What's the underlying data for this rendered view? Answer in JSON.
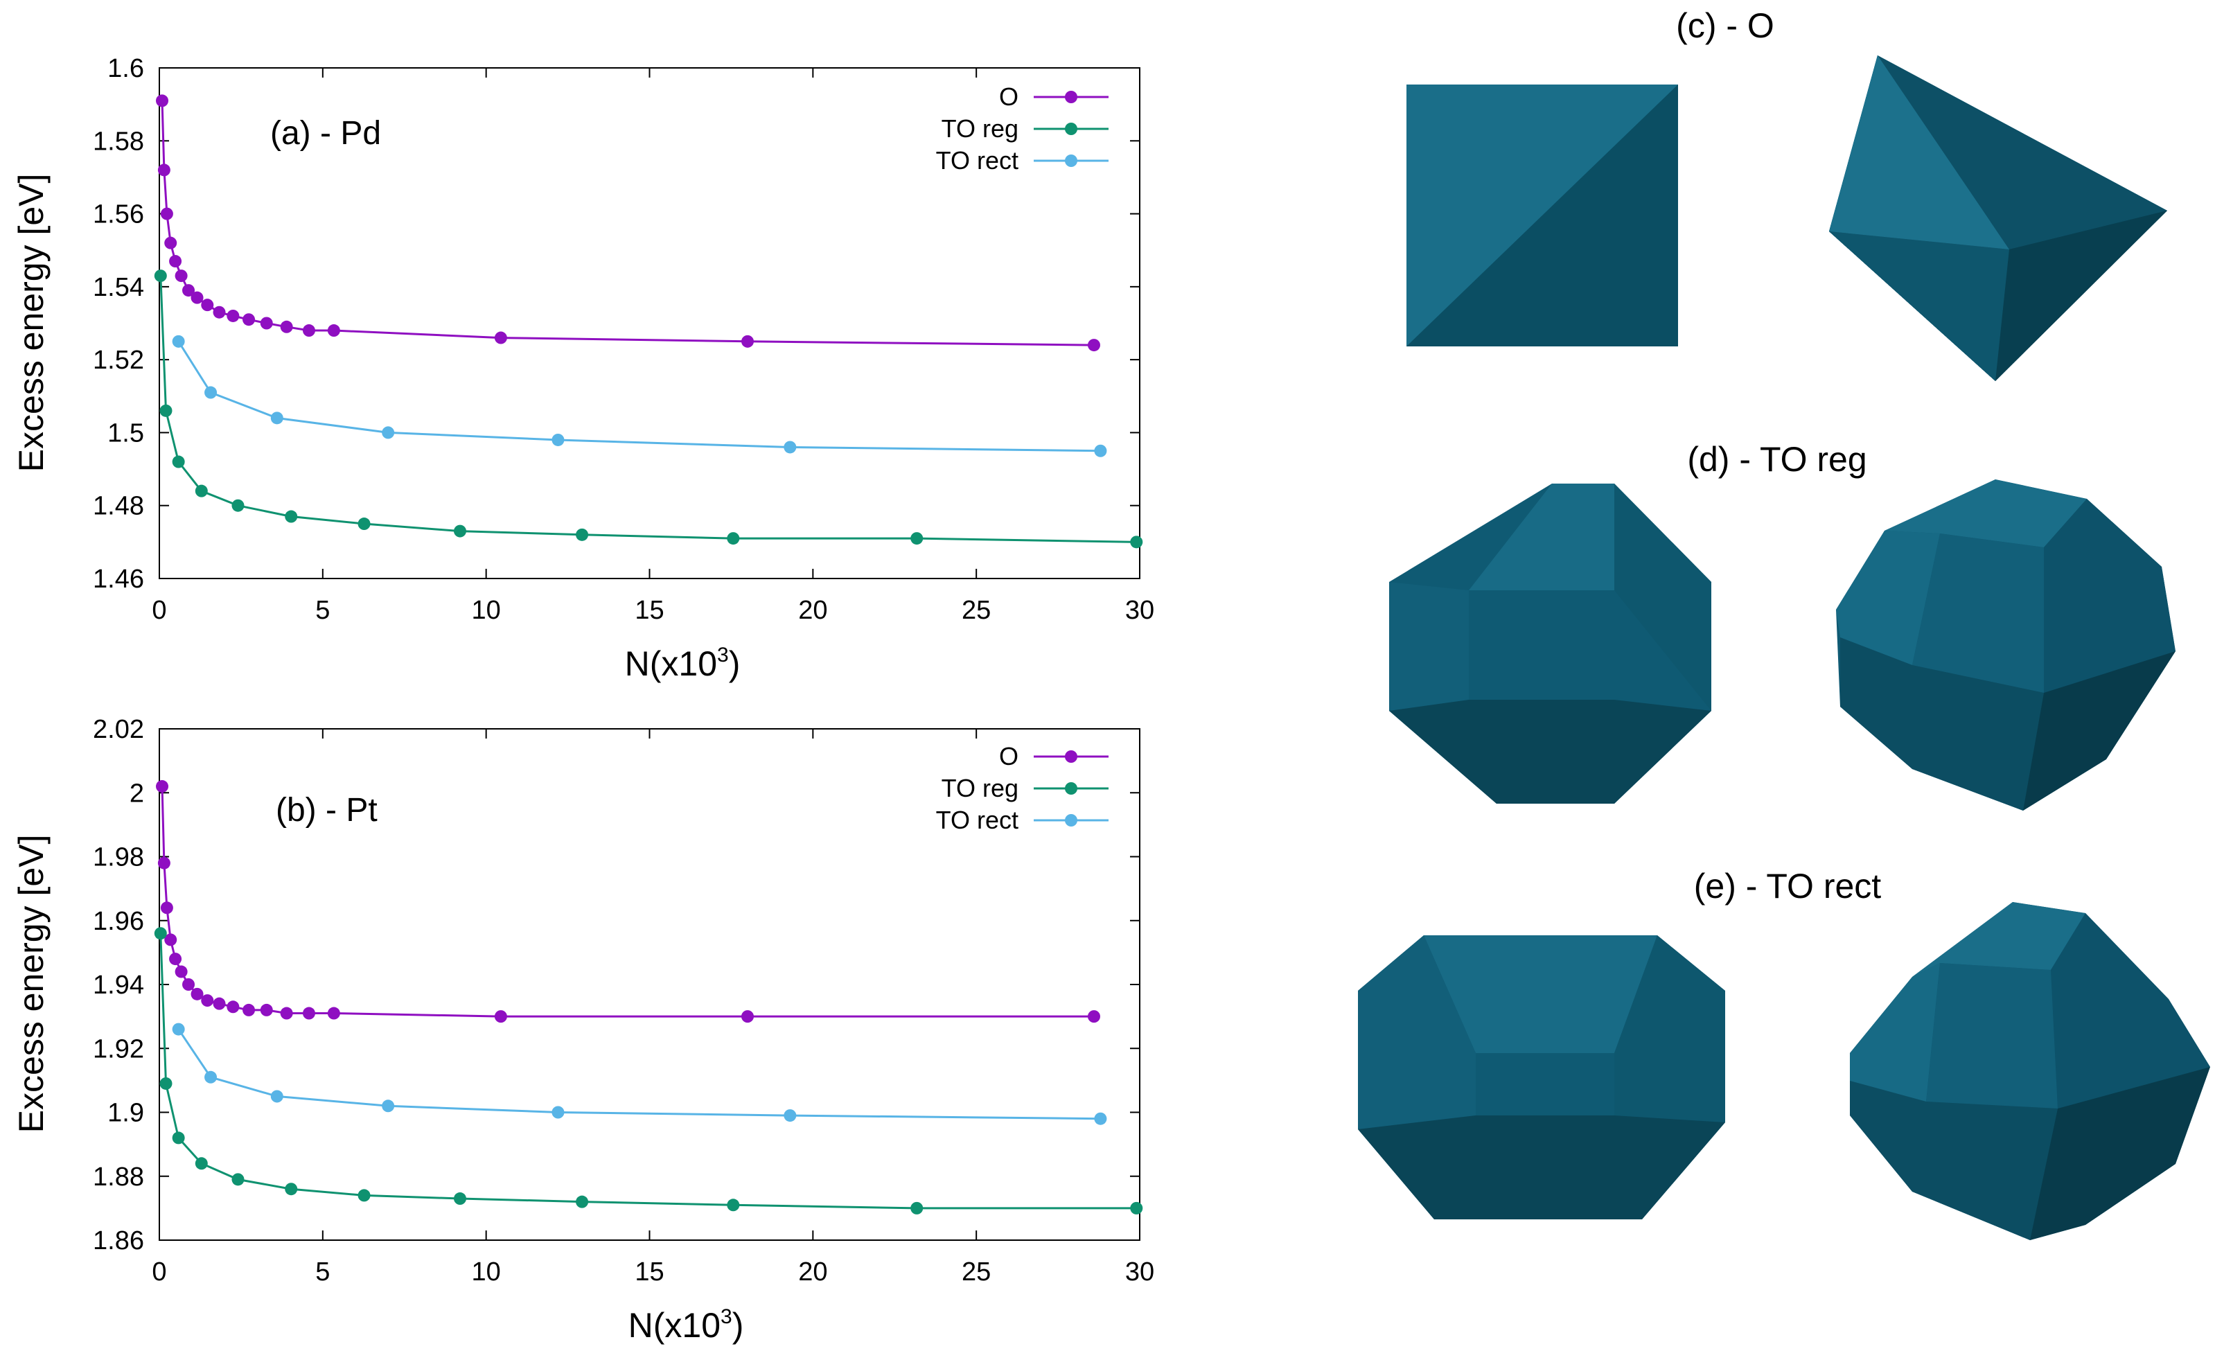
{
  "colors": {
    "O": "#8f0fc1",
    "TO reg": "#0f9270",
    "TO rect": "#58b4e6",
    "particle": "#0f5a73",
    "particle_dark": "#0b4558",
    "particle_light": "#1a6e89"
  },
  "chart_data": [
    {
      "type": "line",
      "title": "(a) - Pd",
      "xlabel": "N(x10",
      "xlabel_sup": "3",
      "xlabel_close": ")",
      "ylabel": "Excess energy [eV]",
      "xlim": [
        0,
        30
      ],
      "ylim": [
        1.46,
        1.6
      ],
      "xticks": [
        0,
        5,
        10,
        15,
        20,
        25,
        30
      ],
      "yticks": [
        1.46,
        1.48,
        1.5,
        1.52,
        1.54,
        1.56,
        1.58,
        1.6
      ],
      "xtick_labels": [
        "0",
        "5",
        "10",
        "15",
        "20",
        "25",
        "30"
      ],
      "ytick_labels": [
        "1.46",
        "1.48",
        "1.5",
        "1.52",
        "1.54",
        "1.56",
        "1.58",
        "1.6"
      ],
      "legend": [
        "O",
        "TO reg",
        "TO rect"
      ],
      "legend_position": "top-right",
      "series": [
        {
          "name": "O",
          "x": [
            0.085,
            0.146,
            0.231,
            0.344,
            0.489,
            0.67,
            0.891,
            1.156,
            1.469,
            1.834,
            2.255,
            2.736,
            3.281,
            3.894,
            4.579,
            5.34,
            10.45,
            18.0,
            28.6
          ],
          "y": [
            1.591,
            1.572,
            1.56,
            1.552,
            1.547,
            1.543,
            1.539,
            1.537,
            1.535,
            1.533,
            1.532,
            1.531,
            1.53,
            1.529,
            1.528,
            1.528,
            1.526,
            1.525,
            1.524
          ]
        },
        {
          "name": "TO reg",
          "x": [
            0.038,
            0.201,
            0.586,
            1.289,
            2.406,
            4.033,
            6.266,
            9.201,
            12.934,
            17.561,
            23.178,
            29.9
          ],
          "y": [
            1.543,
            1.506,
            1.492,
            1.484,
            1.48,
            1.477,
            1.475,
            1.473,
            1.472,
            1.471,
            1.471,
            1.47
          ]
        },
        {
          "name": "TO rect",
          "x": [
            0.586,
            1.57,
            3.6,
            7.0,
            12.2,
            19.3,
            28.8
          ],
          "y": [
            1.525,
            1.511,
            1.504,
            1.5,
            1.498,
            1.496,
            1.495
          ]
        }
      ]
    },
    {
      "type": "line",
      "title": "(b) - Pt",
      "xlabel": "N(x10",
      "xlabel_sup": "3",
      "xlabel_close": ")",
      "ylabel": "Excess energy [eV]",
      "xlim": [
        0,
        30
      ],
      "ylim": [
        1.86,
        2.02
      ],
      "xticks": [
        0,
        5,
        10,
        15,
        20,
        25,
        30
      ],
      "yticks": [
        1.86,
        1.88,
        1.9,
        1.92,
        1.94,
        1.96,
        1.98,
        2.0,
        2.02
      ],
      "xtick_labels": [
        "0",
        "5",
        "10",
        "15",
        "20",
        "25",
        "30"
      ],
      "ytick_labels": [
        "1.86",
        "1.88",
        "1.9",
        "1.92",
        "1.94",
        "1.96",
        "1.98",
        "2",
        "2.02"
      ],
      "legend": [
        "O",
        "TO reg",
        "TO rect"
      ],
      "legend_position": "top-right",
      "series": [
        {
          "name": "O",
          "x": [
            0.085,
            0.146,
            0.231,
            0.344,
            0.489,
            0.67,
            0.891,
            1.156,
            1.469,
            1.834,
            2.255,
            2.736,
            3.281,
            3.894,
            4.579,
            5.34,
            10.45,
            18.0,
            28.6
          ],
          "y": [
            2.002,
            1.978,
            1.964,
            1.954,
            1.948,
            1.944,
            1.94,
            1.937,
            1.935,
            1.934,
            1.933,
            1.932,
            1.932,
            1.931,
            1.931,
            1.931,
            1.93,
            1.93,
            1.93
          ]
        },
        {
          "name": "TO reg",
          "x": [
            0.038,
            0.201,
            0.586,
            1.289,
            2.406,
            4.033,
            6.266,
            9.201,
            12.934,
            17.561,
            23.178,
            29.9
          ],
          "y": [
            1.956,
            1.909,
            1.892,
            1.884,
            1.879,
            1.876,
            1.874,
            1.873,
            1.872,
            1.871,
            1.87,
            1.87
          ]
        },
        {
          "name": "TO rect",
          "x": [
            0.586,
            1.57,
            3.6,
            7.0,
            12.2,
            19.3,
            28.8
          ],
          "y": [
            1.926,
            1.911,
            1.905,
            1.902,
            1.9,
            1.899,
            1.898
          ]
        }
      ]
    }
  ],
  "renders": [
    {
      "label": "(c) - O",
      "shape": "octahedron"
    },
    {
      "label": "(d) - TO reg",
      "shape": "truncated-octahedron-regular"
    },
    {
      "label": "(e) - TO rect",
      "shape": "truncated-octahedron-rectangular"
    }
  ]
}
